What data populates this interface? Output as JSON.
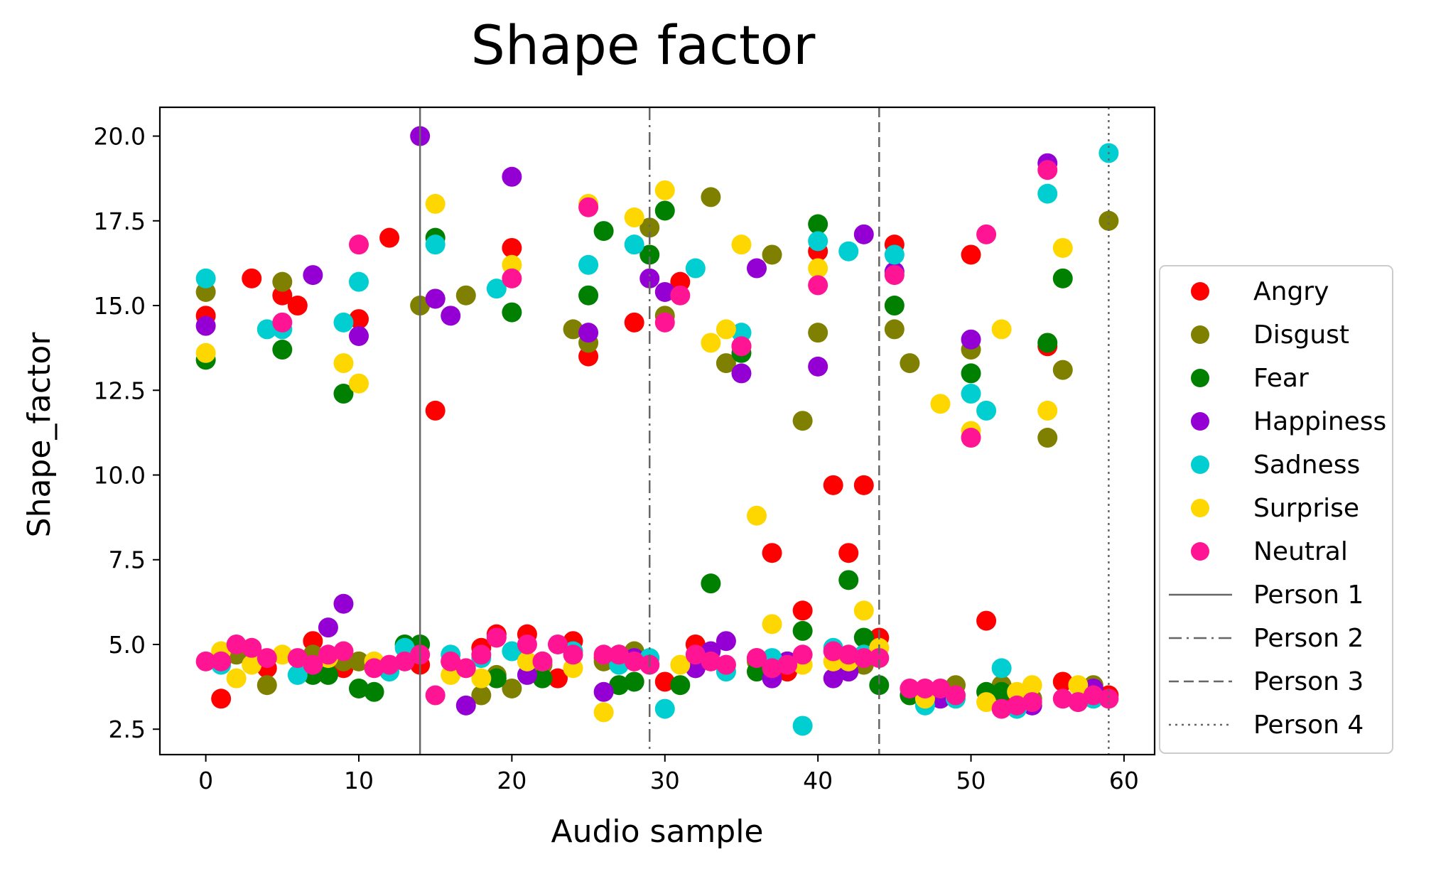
{
  "chart_data": {
    "type": "scatter",
    "title": "Shape factor",
    "xlabel": "Audio sample",
    "ylabel": "Shape_factor",
    "xlim": [
      -3,
      62
    ],
    "ylim": [
      1.75,
      20.85
    ],
    "xticks": [
      0,
      10,
      20,
      30,
      40,
      50,
      60
    ],
    "yticks": [
      2.5,
      5.0,
      7.5,
      10.0,
      12.5,
      15.0,
      17.5,
      20.0
    ],
    "xtick_labels": [
      "0",
      "10",
      "20",
      "30",
      "40",
      "50",
      "60"
    ],
    "ytick_labels": [
      "2.5",
      "5.0",
      "7.5",
      "10.0",
      "12.5",
      "15.0",
      "17.5",
      "20.0"
    ],
    "grid": false,
    "legend_position": "outside-right",
    "series": [
      {
        "name": "Angry",
        "color": "#ff0000",
        "points": [
          [
            0,
            14.7
          ],
          [
            1,
            3.4
          ],
          [
            3,
            15.8
          ],
          [
            4,
            4.3
          ],
          [
            5,
            15.3
          ],
          [
            6,
            15.0
          ],
          [
            7,
            5.1
          ],
          [
            9,
            4.3
          ],
          [
            10,
            14.6
          ],
          [
            12,
            17.0
          ],
          [
            14,
            4.4
          ],
          [
            15,
            11.9
          ],
          [
            16,
            4.5
          ],
          [
            18,
            4.9
          ],
          [
            19,
            5.3
          ],
          [
            20,
            16.7
          ],
          [
            21,
            5.3
          ],
          [
            23,
            4.0
          ],
          [
            24,
            5.1
          ],
          [
            25,
            13.5
          ],
          [
            26,
            4.6
          ],
          [
            28,
            14.5
          ],
          [
            30,
            3.9
          ],
          [
            31,
            15.7
          ],
          [
            32,
            5.0
          ],
          [
            35,
            13.8
          ],
          [
            36,
            4.6
          ],
          [
            37,
            7.7
          ],
          [
            38,
            4.2
          ],
          [
            39,
            6.0
          ],
          [
            40,
            16.6
          ],
          [
            41,
            9.7
          ],
          [
            42,
            7.7
          ],
          [
            43,
            9.7
          ],
          [
            44,
            5.2
          ],
          [
            45,
            16.8
          ],
          [
            47,
            3.6
          ],
          [
            50,
            16.5
          ],
          [
            51,
            5.7
          ],
          [
            53,
            3.4
          ],
          [
            55,
            13.8
          ],
          [
            56,
            3.9
          ],
          [
            58,
            3.5
          ],
          [
            59,
            3.5
          ]
        ]
      },
      {
        "name": "Disgust",
        "color": "#808000",
        "points": [
          [
            0,
            15.4
          ],
          [
            2,
            4.7
          ],
          [
            4,
            3.8
          ],
          [
            5,
            15.7
          ],
          [
            7,
            4.7
          ],
          [
            9,
            4.5
          ],
          [
            10,
            4.5
          ],
          [
            14,
            15.0
          ],
          [
            15,
            15.2
          ],
          [
            17,
            15.3
          ],
          [
            18,
            3.5
          ],
          [
            19,
            4.1
          ],
          [
            20,
            3.7
          ],
          [
            22,
            4.4
          ],
          [
            24,
            14.3
          ],
          [
            25,
            13.9
          ],
          [
            26,
            4.5
          ],
          [
            28,
            4.8
          ],
          [
            29,
            17.3
          ],
          [
            30,
            14.7
          ],
          [
            32,
            4.3
          ],
          [
            33,
            18.2
          ],
          [
            34,
            13.3
          ],
          [
            36,
            4.5
          ],
          [
            37,
            16.5
          ],
          [
            38,
            4.5
          ],
          [
            39,
            11.6
          ],
          [
            40,
            14.2
          ],
          [
            42,
            4.6
          ],
          [
            43,
            4.4
          ],
          [
            45,
            14.3
          ],
          [
            46,
            13.3
          ],
          [
            48,
            3.6
          ],
          [
            49,
            3.8
          ],
          [
            50,
            13.7
          ],
          [
            52,
            3.8
          ],
          [
            54,
            3.4
          ],
          [
            55,
            11.1
          ],
          [
            56,
            13.1
          ],
          [
            58,
            3.8
          ],
          [
            59,
            17.5
          ]
        ]
      },
      {
        "name": "Fear",
        "color": "#008000",
        "points": [
          [
            0,
            13.4
          ],
          [
            5,
            13.7
          ],
          [
            7,
            4.1
          ],
          [
            8,
            4.1
          ],
          [
            9,
            12.4
          ],
          [
            10,
            3.7
          ],
          [
            11,
            3.6
          ],
          [
            13,
            5.0
          ],
          [
            14,
            5.0
          ],
          [
            15,
            17.0
          ],
          [
            19,
            4.0
          ],
          [
            20,
            14.8
          ],
          [
            22,
            4.0
          ],
          [
            25,
            15.3
          ],
          [
            26,
            17.2
          ],
          [
            27,
            3.8
          ],
          [
            28,
            3.9
          ],
          [
            29,
            16.5
          ],
          [
            30,
            17.8
          ],
          [
            31,
            3.8
          ],
          [
            33,
            6.8
          ],
          [
            35,
            13.6
          ],
          [
            36,
            4.2
          ],
          [
            39,
            5.4
          ],
          [
            40,
            17.4
          ],
          [
            42,
            6.9
          ],
          [
            43,
            5.2
          ],
          [
            44,
            3.8
          ],
          [
            45,
            15.0
          ],
          [
            46,
            3.5
          ],
          [
            50,
            13.0
          ],
          [
            51,
            3.6
          ],
          [
            52,
            3.6
          ],
          [
            55,
            13.9
          ],
          [
            56,
            15.8
          ]
        ]
      },
      {
        "name": "Happiness",
        "color": "#9400d3",
        "points": [
          [
            0,
            14.4
          ],
          [
            7,
            15.9
          ],
          [
            8,
            5.5
          ],
          [
            9,
            6.2
          ],
          [
            10,
            14.1
          ],
          [
            14,
            20.0
          ],
          [
            15,
            15.2
          ],
          [
            16,
            14.7
          ],
          [
            17,
            3.2
          ],
          [
            20,
            18.8
          ],
          [
            21,
            4.1
          ],
          [
            25,
            14.2
          ],
          [
            26,
            3.6
          ],
          [
            27,
            4.7
          ],
          [
            28,
            4.6
          ],
          [
            29,
            15.8
          ],
          [
            30,
            15.4
          ],
          [
            32,
            4.3
          ],
          [
            33,
            4.8
          ],
          [
            34,
            5.1
          ],
          [
            35,
            13.0
          ],
          [
            36,
            16.1
          ],
          [
            37,
            4.0
          ],
          [
            38,
            4.5
          ],
          [
            40,
            13.2
          ],
          [
            41,
            4.0
          ],
          [
            42,
            4.2
          ],
          [
            43,
            17.1
          ],
          [
            45,
            16.0
          ],
          [
            48,
            3.4
          ],
          [
            50,
            14.0
          ],
          [
            53,
            3.2
          ],
          [
            54,
            3.2
          ],
          [
            55,
            19.2
          ],
          [
            58,
            3.7
          ]
        ]
      },
      {
        "name": "Sadness",
        "color": "#00ced1",
        "points": [
          [
            0,
            15.8
          ],
          [
            1,
            4.4
          ],
          [
            4,
            14.3
          ],
          [
            5,
            14.3
          ],
          [
            6,
            4.1
          ],
          [
            9,
            14.5
          ],
          [
            10,
            15.7
          ],
          [
            12,
            4.2
          ],
          [
            13,
            4.9
          ],
          [
            15,
            16.8
          ],
          [
            16,
            4.7
          ],
          [
            18,
            4.6
          ],
          [
            19,
            15.5
          ],
          [
            20,
            4.8
          ],
          [
            24,
            4.8
          ],
          [
            25,
            16.2
          ],
          [
            27,
            4.4
          ],
          [
            28,
            16.8
          ],
          [
            29,
            4.6
          ],
          [
            30,
            3.1
          ],
          [
            32,
            16.1
          ],
          [
            34,
            4.2
          ],
          [
            35,
            14.2
          ],
          [
            37,
            4.6
          ],
          [
            39,
            2.6
          ],
          [
            40,
            16.9
          ],
          [
            41,
            4.9
          ],
          [
            42,
            16.6
          ],
          [
            43,
            4.7
          ],
          [
            45,
            16.5
          ],
          [
            47,
            3.2
          ],
          [
            49,
            3.4
          ],
          [
            50,
            12.4
          ],
          [
            51,
            11.9
          ],
          [
            52,
            4.3
          ],
          [
            53,
            3.1
          ],
          [
            55,
            18.3
          ],
          [
            57,
            3.3
          ],
          [
            58,
            3.4
          ],
          [
            59,
            19.5
          ]
        ]
      },
      {
        "name": "Surprise",
        "color": "#ffd700",
        "points": [
          [
            0,
            13.6
          ],
          [
            1,
            4.8
          ],
          [
            2,
            4.0
          ],
          [
            3,
            4.4
          ],
          [
            5,
            4.7
          ],
          [
            8,
            4.6
          ],
          [
            9,
            13.3
          ],
          [
            10,
            12.7
          ],
          [
            11,
            4.5
          ],
          [
            15,
            18.0
          ],
          [
            16,
            4.1
          ],
          [
            18,
            4.0
          ],
          [
            20,
            16.2
          ],
          [
            21,
            4.5
          ],
          [
            22,
            4.5
          ],
          [
            24,
            4.3
          ],
          [
            25,
            18.0
          ],
          [
            26,
            3.0
          ],
          [
            28,
            17.6
          ],
          [
            30,
            18.4
          ],
          [
            31,
            4.4
          ],
          [
            33,
            13.9
          ],
          [
            34,
            14.3
          ],
          [
            35,
            16.8
          ],
          [
            36,
            8.8
          ],
          [
            37,
            5.6
          ],
          [
            39,
            4.4
          ],
          [
            40,
            16.1
          ],
          [
            41,
            4.5
          ],
          [
            42,
            4.5
          ],
          [
            43,
            6.0
          ],
          [
            44,
            4.9
          ],
          [
            47,
            3.4
          ],
          [
            48,
            12.1
          ],
          [
            50,
            11.3
          ],
          [
            51,
            3.3
          ],
          [
            52,
            14.3
          ],
          [
            53,
            3.6
          ],
          [
            54,
            3.8
          ],
          [
            55,
            11.9
          ],
          [
            56,
            16.7
          ],
          [
            57,
            3.8
          ]
        ]
      },
      {
        "name": "Neutral",
        "color": "#ff1493",
        "points": [
          [
            0,
            4.5
          ],
          [
            1,
            4.5
          ],
          [
            2,
            5.0
          ],
          [
            3,
            4.9
          ],
          [
            4,
            4.6
          ],
          [
            5,
            14.5
          ],
          [
            6,
            4.6
          ],
          [
            7,
            4.4
          ],
          [
            8,
            4.7
          ],
          [
            9,
            4.8
          ],
          [
            10,
            16.8
          ],
          [
            11,
            4.3
          ],
          [
            12,
            4.4
          ],
          [
            13,
            4.5
          ],
          [
            14,
            4.7
          ],
          [
            15,
            3.5
          ],
          [
            16,
            4.5
          ],
          [
            17,
            4.3
          ],
          [
            18,
            4.7
          ],
          [
            19,
            5.2
          ],
          [
            20,
            15.8
          ],
          [
            21,
            5.0
          ],
          [
            22,
            4.5
          ],
          [
            23,
            5.0
          ],
          [
            24,
            4.7
          ],
          [
            25,
            17.9
          ],
          [
            26,
            4.7
          ],
          [
            27,
            4.7
          ],
          [
            28,
            4.5
          ],
          [
            29,
            4.4
          ],
          [
            30,
            14.5
          ],
          [
            31,
            15.3
          ],
          [
            32,
            4.7
          ],
          [
            33,
            4.5
          ],
          [
            34,
            4.4
          ],
          [
            35,
            13.8
          ],
          [
            36,
            4.6
          ],
          [
            37,
            4.3
          ],
          [
            38,
            4.4
          ],
          [
            39,
            4.7
          ],
          [
            40,
            15.6
          ],
          [
            41,
            4.8
          ],
          [
            42,
            4.7
          ],
          [
            43,
            4.6
          ],
          [
            44,
            4.6
          ],
          [
            45,
            15.9
          ],
          [
            46,
            3.7
          ],
          [
            47,
            3.7
          ],
          [
            48,
            3.7
          ],
          [
            49,
            3.5
          ],
          [
            50,
            11.1
          ],
          [
            51,
            17.1
          ],
          [
            52,
            3.1
          ],
          [
            53,
            3.2
          ],
          [
            54,
            3.3
          ],
          [
            55,
            19.0
          ],
          [
            56,
            3.4
          ],
          [
            57,
            3.3
          ],
          [
            58,
            3.5
          ],
          [
            59,
            3.4
          ]
        ]
      }
    ],
    "vlines": [
      {
        "name": "Person 1",
        "x": 14,
        "style": "solid"
      },
      {
        "name": "Person 2",
        "x": 29,
        "style": "dashdot"
      },
      {
        "name": "Person 3",
        "x": 44,
        "style": "dashed"
      },
      {
        "name": "Person 4",
        "x": 59,
        "style": "dotted"
      }
    ],
    "vline_color": "#666666"
  }
}
